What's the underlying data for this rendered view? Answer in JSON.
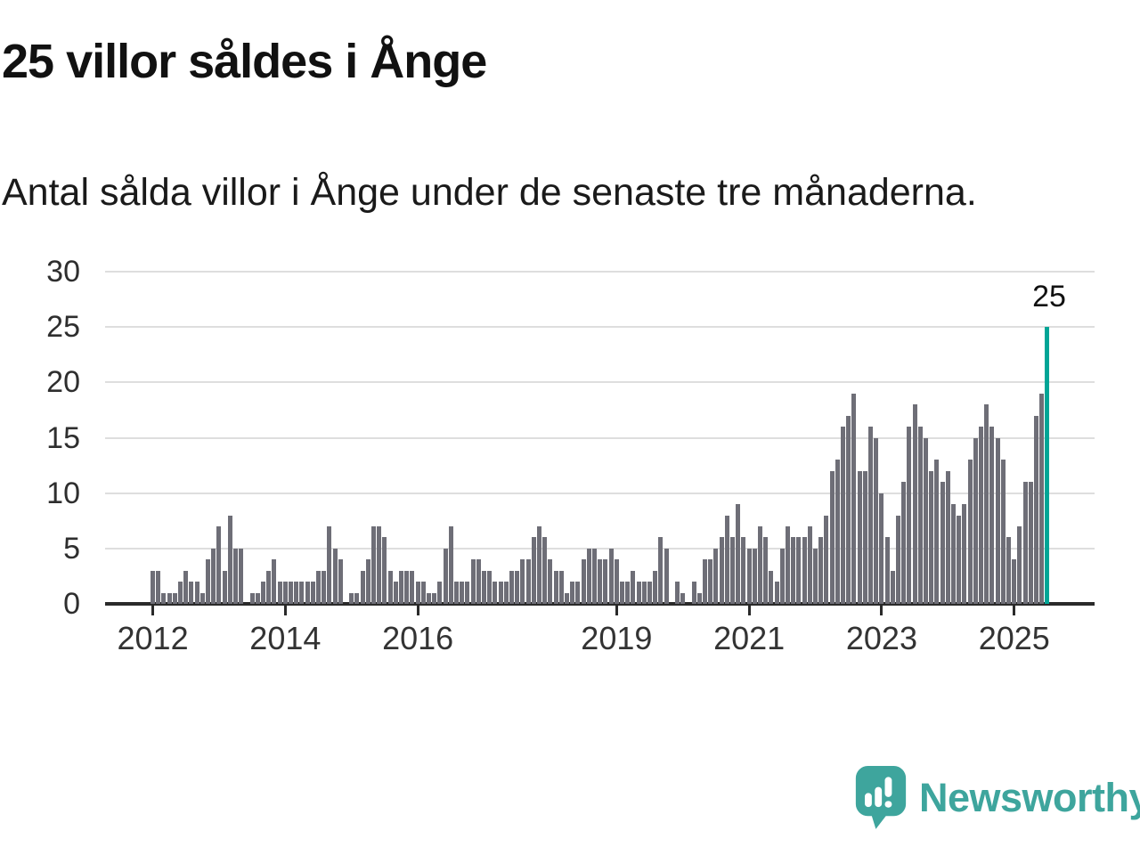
{
  "header": {
    "title": "25 villor såldes i Ånge",
    "subtitle": "Antal sålda villor i Ånge under de senaste tre månaderna."
  },
  "chart_data": {
    "type": "bar",
    "title": "25 villor såldes i Ånge",
    "xlabel": "",
    "ylabel": "",
    "ylim": [
      0,
      30
    ],
    "grid": true,
    "x_months_start": "2012-01",
    "x_months_end": "2025-07",
    "values": [
      3,
      3,
      1,
      1,
      1,
      2,
      3,
      2,
      2,
      1,
      4,
      5,
      7,
      3,
      8,
      5,
      5,
      0,
      1,
      1,
      2,
      3,
      4,
      2,
      2,
      2,
      2,
      2,
      2,
      2,
      3,
      3,
      7,
      5,
      4,
      0,
      1,
      1,
      3,
      4,
      7,
      7,
      6,
      3,
      2,
      3,
      3,
      3,
      2,
      2,
      1,
      1,
      2,
      5,
      7,
      2,
      2,
      2,
      4,
      4,
      3,
      3,
      2,
      2,
      2,
      3,
      3,
      4,
      4,
      6,
      7,
      6,
      4,
      3,
      3,
      1,
      2,
      2,
      4,
      5,
      5,
      4,
      4,
      5,
      4,
      2,
      2,
      3,
      2,
      2,
      2,
      3,
      6,
      5,
      0,
      2,
      1,
      0,
      2,
      1,
      4,
      4,
      5,
      6,
      8,
      6,
      9,
      6,
      5,
      5,
      7,
      6,
      3,
      2,
      5,
      7,
      6,
      6,
      6,
      7,
      5,
      6,
      8,
      12,
      13,
      16,
      17,
      19,
      12,
      12,
      16,
      15,
      10,
      6,
      3,
      8,
      11,
      16,
      18,
      16,
      15,
      12,
      13,
      11,
      12,
      9,
      8,
      9,
      13,
      15,
      16,
      18,
      16,
      15,
      13,
      6,
      4,
      7,
      11,
      11,
      17,
      19,
      25
    ],
    "highlight_last": true,
    "highlight_last_value": 25,
    "annotation_label": "25",
    "y_ticks": [
      0,
      5,
      10,
      15,
      20,
      25,
      30
    ],
    "x_ticks": [
      {
        "label": "2012",
        "index": 0
      },
      {
        "label": "2014",
        "index": 24
      },
      {
        "label": "2016",
        "index": 48
      },
      {
        "label": "2019",
        "index": 84
      },
      {
        "label": "2021",
        "index": 108
      },
      {
        "label": "2023",
        "index": 132
      },
      {
        "label": "2025",
        "index": 156
      }
    ],
    "colors": {
      "bar": "#6e6e77",
      "highlight": "#00a596",
      "grid": "#dedede",
      "axis": "#2a2a2a",
      "tick_label": "#333333"
    },
    "legend": "none"
  },
  "branding": {
    "name": "Newsworthy",
    "logo_color": "#3ea59d"
  }
}
